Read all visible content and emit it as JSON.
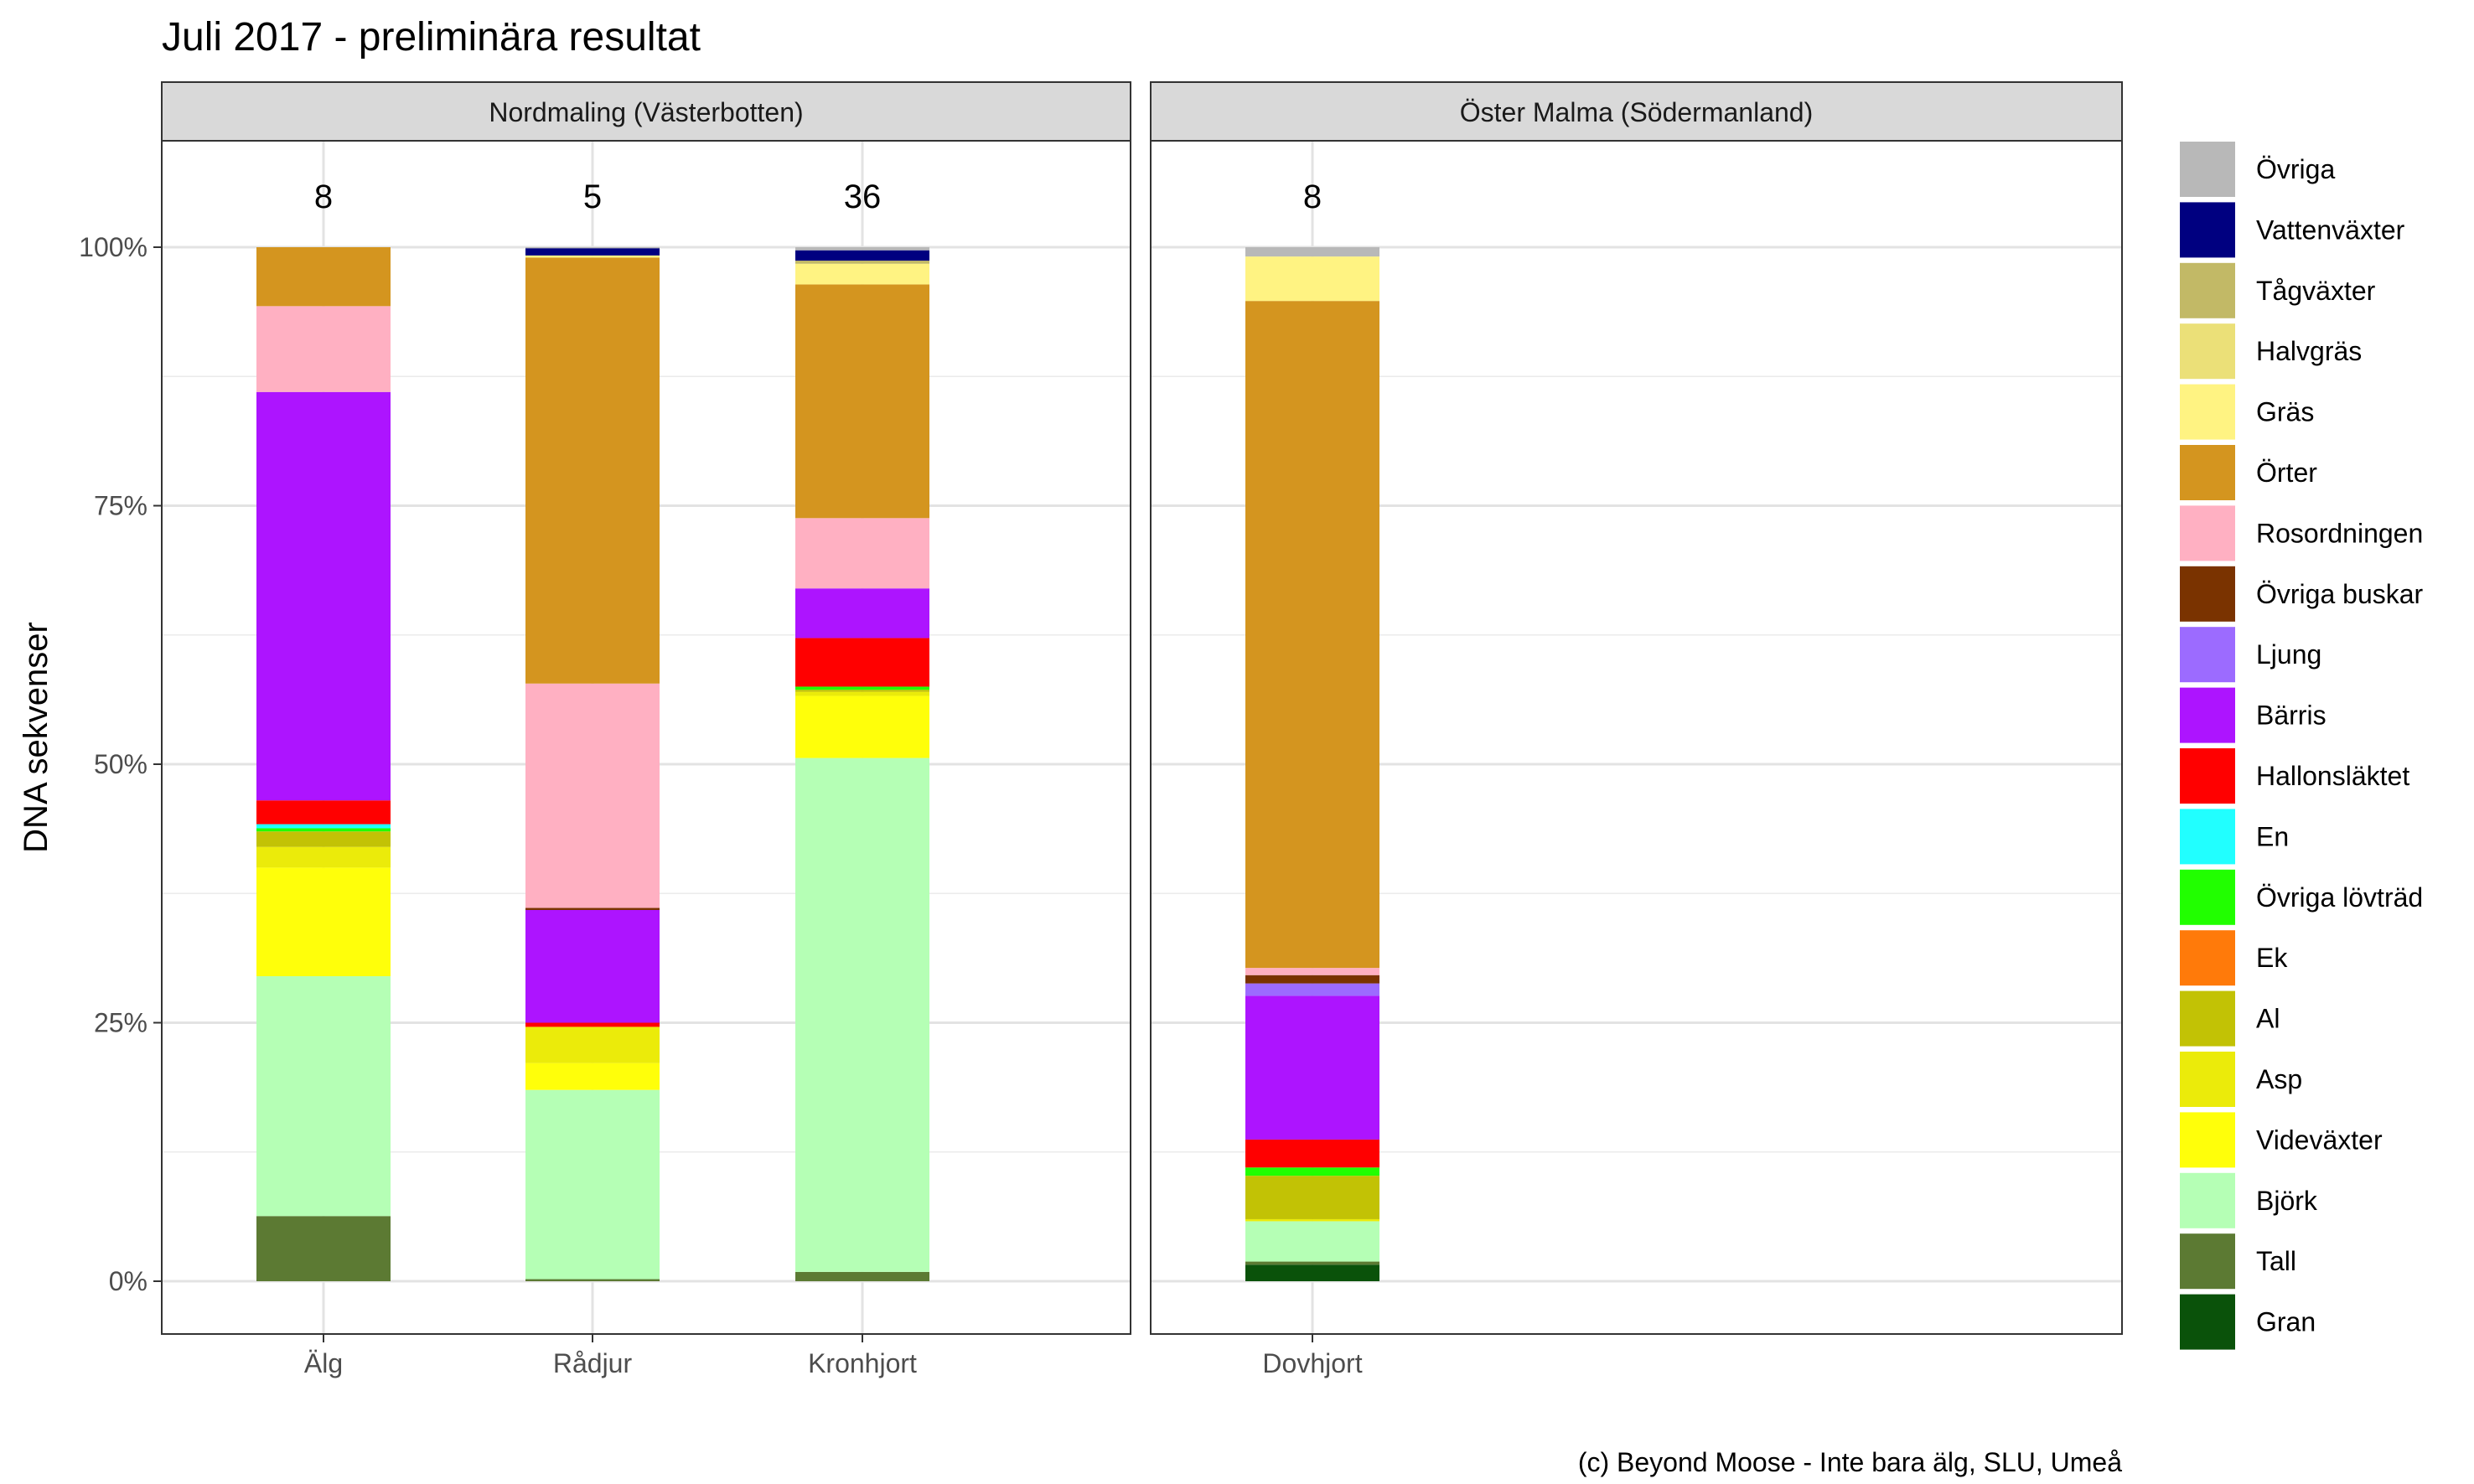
{
  "chart_data": {
    "type": "bar",
    "stacked": true,
    "title": "Juli 2017 - preliminära resultat",
    "ylabel": "DNA sekvenser",
    "xlabel": "",
    "caption": "(c) Beyond Moose - Inte bara älg, SLU, Umeå",
    "ylim": [
      0,
      1.1
    ],
    "yticks": [
      {
        "value": 0,
        "label": "0%"
      },
      {
        "value": 0.25,
        "label": "25%"
      },
      {
        "value": 0.5,
        "label": "50%"
      },
      {
        "value": 0.75,
        "label": "75%"
      },
      {
        "value": 1.0,
        "label": "100%"
      }
    ],
    "grid": true,
    "legend_position": "right",
    "legend": [
      {
        "name": "Övriga",
        "color": "#b8b8b8"
      },
      {
        "name": "Vattenväxter",
        "color": "#000080"
      },
      {
        "name": "Tågväxter",
        "color": "#c2b966"
      },
      {
        "name": "Halvgräs",
        "color": "#ebe078"
      },
      {
        "name": "Gräs",
        "color": "#fff382"
      },
      {
        "name": "Örter",
        "color": "#d4951f"
      },
      {
        "name": "Rosordningen",
        "color": "#ffb0c2"
      },
      {
        "name": "Övriga buskar",
        "color": "#7a3300"
      },
      {
        "name": "Ljung",
        "color": "#9c6bff"
      },
      {
        "name": "Bärris",
        "color": "#ad14ff"
      },
      {
        "name": "Hallonsläktet",
        "color": "#ff0000"
      },
      {
        "name": "En",
        "color": "#21ffff"
      },
      {
        "name": "Övriga lövträd",
        "color": "#21ff00"
      },
      {
        "name": "Ek",
        "color": "#ff7a0a"
      },
      {
        "name": "Al",
        "color": "#c2c205"
      },
      {
        "name": "Asp",
        "color": "#ebeb0a"
      },
      {
        "name": "Videväxter",
        "color": "#ffff0a"
      },
      {
        "name": "Björk",
        "color": "#b5ffb5"
      },
      {
        "name": "Tall",
        "color": "#5c7a33"
      },
      {
        "name": "Gran",
        "color": "#0a520a"
      }
    ],
    "panels": [
      {
        "title": "Nordmaling (Västerbotten)",
        "bars": [
          {
            "category": "Älg",
            "n": "8",
            "segments": [
              {
                "name": "Tall",
                "value": 0.063
              },
              {
                "name": "Björk",
                "value": 0.232
              },
              {
                "name": "Videväxter",
                "value": 0.105
              },
              {
                "name": "Asp",
                "value": 0.02
              },
              {
                "name": "Al",
                "value": 0.015
              },
              {
                "name": "Övriga lövträd",
                "value": 0.003
              },
              {
                "name": "En",
                "value": 0.004
              },
              {
                "name": "Hallonsläktet",
                "value": 0.023
              },
              {
                "name": "Bärris",
                "value": 0.395
              },
              {
                "name": "Rosordningen",
                "value": 0.083
              },
              {
                "name": "Örter",
                "value": 0.057
              }
            ]
          },
          {
            "category": "Rådjur",
            "n": "5",
            "segments": [
              {
                "name": "Tall",
                "value": 0.002
              },
              {
                "name": "Björk",
                "value": 0.183
              },
              {
                "name": "Videväxter",
                "value": 0.026
              },
              {
                "name": "Asp",
                "value": 0.035
              },
              {
                "name": "Hallonsläktet",
                "value": 0.004
              },
              {
                "name": "Bärris",
                "value": 0.109
              },
              {
                "name": "Övriga buskar",
                "value": 0.002
              },
              {
                "name": "Rosordningen",
                "value": 0.217
              },
              {
                "name": "Örter",
                "value": 0.412
              },
              {
                "name": "Gräs",
                "value": 0.002
              },
              {
                "name": "Vattenväxter",
                "value": 0.007
              },
              {
                "name": "Övriga",
                "value": 0.001
              }
            ]
          },
          {
            "category": "Kronhjort",
            "n": "36",
            "segments": [
              {
                "name": "Tall",
                "value": 0.009
              },
              {
                "name": "Björk",
                "value": 0.497
              },
              {
                "name": "Videväxter",
                "value": 0.06
              },
              {
                "name": "Asp",
                "value": 0.004
              },
              {
                "name": "Al",
                "value": 0.002
              },
              {
                "name": "Övriga lövträd",
                "value": 0.003
              },
              {
                "name": "Hallonsläktet",
                "value": 0.047
              },
              {
                "name": "Bärris",
                "value": 0.048
              },
              {
                "name": "Rosordningen",
                "value": 0.068
              },
              {
                "name": "Örter",
                "value": 0.226
              },
              {
                "name": "Gräs",
                "value": 0.02
              },
              {
                "name": "Tågväxter",
                "value": 0.003
              },
              {
                "name": "Vattenväxter",
                "value": 0.01
              },
              {
                "name": "Övriga",
                "value": 0.003
              }
            ]
          }
        ]
      },
      {
        "title": "Öster Malma (Södermanland)",
        "bars": [
          {
            "category": "Dovhjort",
            "n": "8",
            "segments": [
              {
                "name": "Gran",
                "value": 0.016
              },
              {
                "name": "Tall",
                "value": 0.003
              },
              {
                "name": "Björk",
                "value": 0.039
              },
              {
                "name": "Asp",
                "value": 0.002
              },
              {
                "name": "Al",
                "value": 0.042
              },
              {
                "name": "Övriga lövträd",
                "value": 0.008
              },
              {
                "name": "Hallonsläktet",
                "value": 0.027
              },
              {
                "name": "Bärris",
                "value": 0.139
              },
              {
                "name": "Ljung",
                "value": 0.012
              },
              {
                "name": "Övriga buskar",
                "value": 0.008
              },
              {
                "name": "Rosordningen",
                "value": 0.007
              },
              {
                "name": "Örter",
                "value": 0.645
              },
              {
                "name": "Gräs",
                "value": 0.043
              },
              {
                "name": "Övriga",
                "value": 0.009
              }
            ]
          }
        ]
      }
    ]
  }
}
